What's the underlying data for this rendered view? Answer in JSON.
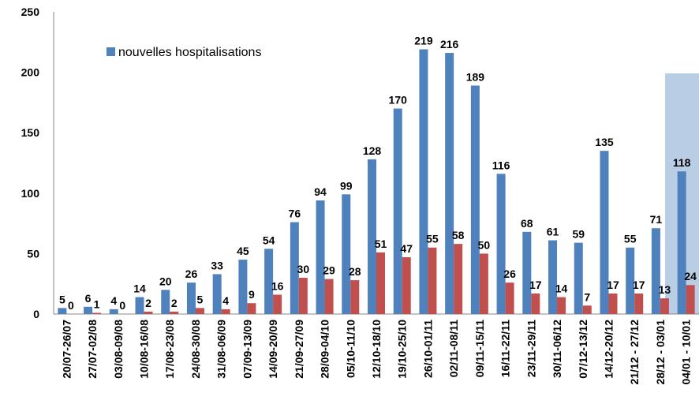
{
  "chart_data": {
    "type": "bar",
    "categories": [
      "20/07-26/07",
      "27/07-02/08",
      "03/08-09/08",
      "10/08-16/08",
      "17/08-23/08",
      "24/08-30/08",
      "31/08-06/09",
      "07/09-13/09",
      "14/09-20/09",
      "21/09-27/09",
      "28/09-04/10",
      "05/10-11/10",
      "12/10-18/10",
      "19/10-25/10",
      "26/10-01/11",
      "02/11-08/11",
      "09/11-15/11",
      "16/11-22/11",
      "23/11-29/11",
      "30/11-06/12",
      "07/12-13/12",
      "14/12-20/12",
      "21/12 - 27/12",
      "28/12 - 03/01",
      "04/01 - 10/01"
    ],
    "series": [
      {
        "name": "nouvelles hospitalisations",
        "color": "#4f81bd",
        "values": [
          5,
          6,
          4,
          14,
          20,
          26,
          33,
          45,
          54,
          76,
          94,
          99,
          128,
          170,
          219,
          216,
          189,
          116,
          68,
          61,
          59,
          135,
          55,
          71,
          118
        ]
      },
      {
        "color": "#c0504d",
        "values": [
          0,
          1,
          0,
          2,
          2,
          5,
          4,
          9,
          16,
          30,
          29,
          28,
          51,
          47,
          55,
          58,
          50,
          26,
          17,
          14,
          7,
          17,
          17,
          13,
          24
        ]
      }
    ],
    "ylim": [
      0,
      250
    ],
    "yticks": [
      0,
      50,
      100,
      150,
      200,
      250
    ],
    "grid": false,
    "legend": "top-left"
  }
}
